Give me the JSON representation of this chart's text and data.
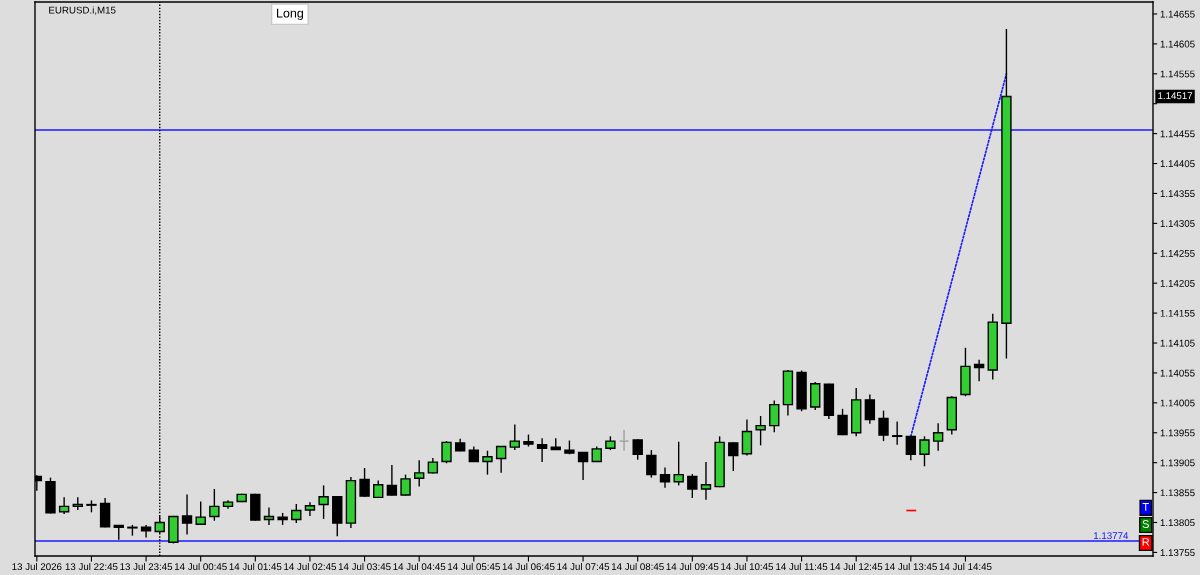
{
  "chart_data": {
    "type": "candlestick",
    "title": "EURUSD.i,M15",
    "x": [
      "2026-07-13T21:45",
      "2026-07-13T22:00",
      "2026-07-13T22:15",
      "2026-07-13T22:30",
      "2026-07-13T22:45",
      "2026-07-13T23:00",
      "2026-07-13T23:15",
      "2026-07-13T23:30",
      "2026-07-13T23:45",
      "2026-07-14T00:00",
      "2026-07-14T00:15",
      "2026-07-14T00:30",
      "2026-07-14T00:45",
      "2026-07-14T01:00",
      "2026-07-14T01:15",
      "2026-07-14T01:30",
      "2026-07-14T01:45",
      "2026-07-14T02:00",
      "2026-07-14T02:15",
      "2026-07-14T02:30",
      "2026-07-14T02:45",
      "2026-07-14T03:00",
      "2026-07-14T03:15",
      "2026-07-14T03:30",
      "2026-07-14T03:45",
      "2026-07-14T04:00",
      "2026-07-14T04:15",
      "2026-07-14T04:30",
      "2026-07-14T04:45",
      "2026-07-14T05:00",
      "2026-07-14T05:15",
      "2026-07-14T05:30",
      "2026-07-14T05:45",
      "2026-07-14T06:00",
      "2026-07-14T06:15",
      "2026-07-14T06:30",
      "2026-07-14T06:45",
      "2026-07-14T07:00",
      "2026-07-14T07:15",
      "2026-07-14T07:30",
      "2026-07-14T07:45",
      "2026-07-14T08:00",
      "2026-07-14T08:15",
      "2026-07-14T08:30",
      "2026-07-14T08:45",
      "2026-07-14T09:00",
      "2026-07-14T09:15",
      "2026-07-14T09:30",
      "2026-07-14T09:45",
      "2026-07-14T10:00",
      "2026-07-14T10:15",
      "2026-07-14T10:30",
      "2026-07-14T10:45",
      "2026-07-14T11:00",
      "2026-07-14T11:15",
      "2026-07-14T11:30",
      "2026-07-14T11:45",
      "2026-07-14T12:00",
      "2026-07-14T12:15",
      "2026-07-14T12:30",
      "2026-07-14T12:45",
      "2026-07-14T13:00",
      "2026-07-14T13:15",
      "2026-07-14T13:30",
      "2026-07-14T13:45",
      "2026-07-14T14:00",
      "2026-07-14T14:15",
      "2026-07-14T14:30",
      "2026-07-14T14:45",
      "2026-07-14T15:00",
      "2026-07-14T15:15",
      "2026-07-14T15:30"
    ],
    "ohlc": [
      [
        1.13882,
        1.13884,
        1.13858,
        1.13875
      ],
      [
        1.13873,
        1.1388,
        1.1382,
        1.13821
      ],
      [
        1.13823,
        1.13847,
        1.13819,
        1.13832
      ],
      [
        1.13832,
        1.13847,
        1.13826,
        1.13835
      ],
      [
        1.13835,
        1.13842,
        1.13822,
        1.13834
      ],
      [
        1.13837,
        1.13846,
        1.13797,
        1.13798
      ],
      [
        1.138,
        1.13801,
        1.13776,
        1.13797
      ],
      [
        1.13797,
        1.13801,
        1.13783,
        1.13796
      ],
      [
        1.13797,
        1.13801,
        1.1378,
        1.13791
      ],
      [
        1.1379,
        1.13816,
        1.13786,
        1.13805
      ],
      [
        1.13772,
        1.13816,
        1.1377,
        1.13815
      ],
      [
        1.13816,
        1.13852,
        1.13785,
        1.13804
      ],
      [
        1.13802,
        1.1384,
        1.13801,
        1.13814
      ],
      [
        1.13815,
        1.13861,
        1.13808,
        1.13832
      ],
      [
        1.13832,
        1.13842,
        1.13828,
        1.13839
      ],
      [
        1.1384,
        1.13853,
        1.13839,
        1.13852
      ],
      [
        1.13852,
        1.13853,
        1.13808,
        1.13809
      ],
      [
        1.1381,
        1.1383,
        1.13801,
        1.13815
      ],
      [
        1.13814,
        1.13821,
        1.13801,
        1.1381
      ],
      [
        1.1381,
        1.13836,
        1.13804,
        1.13825
      ],
      [
        1.13826,
        1.13839,
        1.13816,
        1.13833
      ],
      [
        1.13835,
        1.13867,
        1.13811,
        1.13848
      ],
      [
        1.13848,
        1.13849,
        1.13782,
        1.13804
      ],
      [
        1.13804,
        1.13881,
        1.13796,
        1.13875
      ],
      [
        1.13877,
        1.13896,
        1.13848,
        1.13849
      ],
      [
        1.13847,
        1.13875,
        1.13846,
        1.13868
      ],
      [
        1.13867,
        1.13901,
        1.1385,
        1.13851
      ],
      [
        1.13851,
        1.13885,
        1.1385,
        1.13878
      ],
      [
        1.13879,
        1.13909,
        1.13865,
        1.13888
      ],
      [
        1.13888,
        1.13913,
        1.13887,
        1.13906
      ],
      [
        1.13907,
        1.13941,
        1.13904,
        1.13939
      ],
      [
        1.13938,
        1.13945,
        1.13924,
        1.13925
      ],
      [
        1.13926,
        1.13932,
        1.13906,
        1.13907
      ],
      [
        1.13907,
        1.13925,
        1.13885,
        1.13915
      ],
      [
        1.13912,
        1.13933,
        1.13888,
        1.13932
      ],
      [
        1.13931,
        1.13969,
        1.13926,
        1.13941
      ],
      [
        1.1394,
        1.13952,
        1.13932,
        1.13936
      ],
      [
        1.13935,
        1.13946,
        1.13906,
        1.13929
      ],
      [
        1.13931,
        1.13946,
        1.13926,
        1.13927
      ],
      [
        1.13926,
        1.13942,
        1.13919,
        1.13921
      ],
      [
        1.13922,
        1.13923,
        1.13876,
        1.13907
      ],
      [
        1.13907,
        1.13932,
        1.13906,
        1.13928
      ],
      [
        1.13929,
        1.13949,
        1.13926,
        1.13941
      ],
      [
        1.13941,
        1.1396,
        1.13925,
        1.13941
      ],
      [
        1.13943,
        1.13944,
        1.1391,
        1.13919
      ],
      [
        1.13917,
        1.13926,
        1.1388,
        1.13885
      ],
      [
        1.13885,
        1.13897,
        1.13863,
        1.13873
      ],
      [
        1.13873,
        1.1394,
        1.13867,
        1.13885
      ],
      [
        1.13882,
        1.13886,
        1.13846,
        1.13861
      ],
      [
        1.13861,
        1.13906,
        1.13843,
        1.13868
      ],
      [
        1.13865,
        1.13949,
        1.13864,
        1.13939
      ],
      [
        1.13938,
        1.13939,
        1.13891,
        1.13917
      ],
      [
        1.1392,
        1.13977,
        1.13917,
        1.13957
      ],
      [
        1.1396,
        1.13983,
        1.13934,
        1.13967
      ],
      [
        1.13967,
        1.14009,
        1.13956,
        1.14002
      ],
      [
        1.14002,
        1.1406,
        1.13984,
        1.14058
      ],
      [
        1.14056,
        1.14059,
        1.13991,
        1.13995
      ],
      [
        1.13998,
        1.1404,
        1.13993,
        1.14037
      ],
      [
        1.14036,
        1.14037,
        1.13978,
        1.13984
      ],
      [
        1.13984,
        1.13995,
        1.13951,
        1.13952
      ],
      [
        1.13955,
        1.1403,
        1.13949,
        1.1401
      ],
      [
        1.1401,
        1.14019,
        1.1397,
        1.13977
      ],
      [
        1.13979,
        1.13992,
        1.13941,
        1.13951
      ],
      [
        1.1395,
        1.13974,
        1.13935,
        1.13949
      ],
      [
        1.13949,
        1.1395,
        1.13909,
        1.13919
      ],
      [
        1.13919,
        1.13949,
        1.13899,
        1.13943
      ],
      [
        1.13941,
        1.13971,
        1.13925,
        1.13955
      ],
      [
        1.1396,
        1.14016,
        1.13952,
        1.14014
      ],
      [
        1.14019,
        1.14097,
        1.14016,
        1.14066
      ],
      [
        1.14069,
        1.14077,
        1.14041,
        1.14064
      ],
      [
        1.1406,
        1.14154,
        1.14044,
        1.1414
      ],
      [
        1.14138,
        1.1463,
        1.14079,
        1.14517
      ]
    ],
    "colors": [
      "#000000",
      "#000000",
      "#32cd32",
      "#32cd32",
      "#000000",
      "#000000",
      "#000000",
      "#000000",
      "#000000",
      "#32cd32",
      "#32cd32",
      "#000000",
      "#32cd32",
      "#32cd32",
      "#32cd32",
      "#32cd32",
      "#000000",
      "#32cd32",
      "#000000",
      "#32cd32",
      "#32cd32",
      "#32cd32",
      "#000000",
      "#32cd32",
      "#000000",
      "#32cd32",
      "#000000",
      "#32cd32",
      "#32cd32",
      "#32cd32",
      "#32cd32",
      "#000000",
      "#000000",
      "#32cd32",
      "#32cd32",
      "#32cd32",
      "#000000",
      "#000000",
      "#000000",
      "#000000",
      "#000000",
      "#32cd32",
      "#32cd32",
      "#a0a0a0",
      "#000000",
      "#000000",
      "#000000",
      "#32cd32",
      "#000000",
      "#32cd32",
      "#32cd32",
      "#000000",
      "#32cd32",
      "#32cd32",
      "#32cd32",
      "#32cd32",
      "#000000",
      "#32cd32",
      "#000000",
      "#000000",
      "#32cd32",
      "#000000",
      "#000000",
      "#000000",
      "#000000",
      "#32cd32",
      "#32cd32",
      "#32cd32",
      "#32cd32",
      "#000000",
      "#32cd32",
      "#32cd32"
    ],
    "series": [
      {
        "type": "line",
        "x": [
          "2026-07-14T13:45",
          "2026-07-14T15:30"
        ],
        "values": [
          1.13949,
          1.14555
        ],
        "color": "#1a1aff",
        "line_style": "dotted"
      },
      {
        "type": "line",
        "x": [
          "2026-07-14T13:41",
          "2026-07-14T13:50"
        ],
        "values": [
          1.13825,
          1.13825
        ],
        "color": "#ff0000",
        "line_style": "solid"
      }
    ],
    "xlim": [
      "2026-07-13T21:43",
      "2026-07-14T18:11"
    ],
    "xticks": [
      {
        "value": "2026-07-13T21:45",
        "label": "13 Jul 2026"
      },
      {
        "value": "2026-07-13T22:45",
        "label": "13 Jul 22:45"
      },
      {
        "value": "2026-07-13T23:45",
        "label": "13 Jul 23:45"
      },
      {
        "value": "2026-07-14T00:45",
        "label": "14 Jul 00:45"
      },
      {
        "value": "2026-07-14T01:45",
        "label": "14 Jul 01:45"
      },
      {
        "value": "2026-07-14T02:45",
        "label": "14 Jul 02:45"
      },
      {
        "value": "2026-07-14T03:45",
        "label": "14 Jul 03:45"
      },
      {
        "value": "2026-07-14T04:45",
        "label": "14 Jul 04:45"
      },
      {
        "value": "2026-07-14T05:45",
        "label": "14 Jul 05:45"
      },
      {
        "value": "2026-07-14T06:45",
        "label": "14 Jul 06:45"
      },
      {
        "value": "2026-07-14T07:45",
        "label": "14 Jul 07:45"
      },
      {
        "value": "2026-07-14T08:45",
        "label": "14 Jul 08:45"
      },
      {
        "value": "2026-07-14T09:45",
        "label": "14 Jul 09:45"
      },
      {
        "value": "2026-07-14T10:45",
        "label": "14 Jul 10:45"
      },
      {
        "value": "2026-07-14T11:45",
        "label": "14 Jul 11:45"
      },
      {
        "value": "2026-07-14T12:45",
        "label": "14 Jul 12:45"
      },
      {
        "value": "2026-07-14T13:45",
        "label": "14 Jul 13:45"
      },
      {
        "value": "2026-07-14T14:45",
        "label": "14 Jul 14:45"
      }
    ],
    "ylim": [
      1.13749,
      1.14675
    ],
    "yticks": [
      1.13755,
      1.13805,
      1.13855,
      1.13905,
      1.13955,
      1.14005,
      1.14055,
      1.14105,
      1.14155,
      1.14205,
      1.14255,
      1.14305,
      1.14355,
      1.14405,
      1.14455,
      {
        "value": 1.14505,
        "label": null
      },
      1.14555,
      1.14605,
      1.14655
    ],
    "ref_lines": [
      {
        "axis": "y",
        "value": 1.14461,
        "color": "#1a1aff",
        "line_style": "solid"
      },
      {
        "axis": "y",
        "value": 1.13774,
        "label": "1.13774",
        "color": "#1a1aff",
        "line_style": "solid"
      },
      {
        "axis": "x",
        "value": "2026-07-14T00:00",
        "color": "#000000",
        "line_style": "dotted"
      }
    ],
    "annotations": [
      "1.14517",
      "Long",
      "T",
      "S",
      "R"
    ],
    "grid": false
  }
}
